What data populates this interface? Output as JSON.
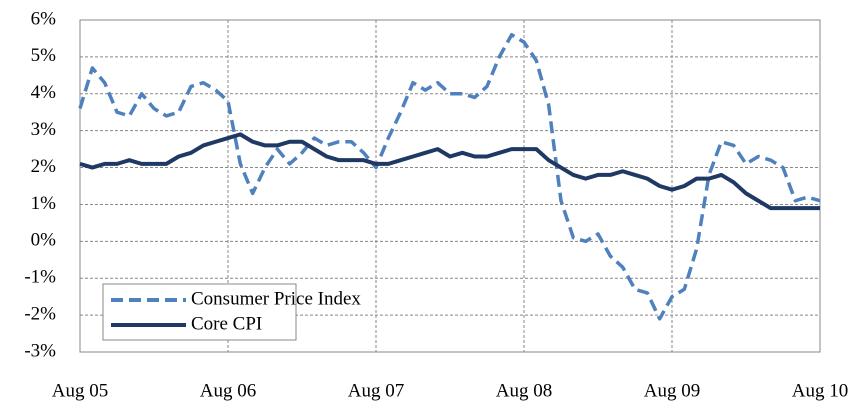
{
  "chart_data": {
    "type": "line",
    "categories": [
      "Aug 05",
      null,
      null,
      null,
      null,
      null,
      null,
      null,
      null,
      null,
      null,
      null,
      "Aug 06",
      null,
      null,
      null,
      null,
      null,
      null,
      null,
      null,
      null,
      null,
      null,
      "Aug 07",
      null,
      null,
      null,
      null,
      null,
      null,
      null,
      null,
      null,
      null,
      null,
      "Aug 08",
      null,
      null,
      null,
      null,
      null,
      null,
      null,
      null,
      null,
      null,
      null,
      "Aug 09",
      null,
      null,
      null,
      null,
      null,
      null,
      null,
      null,
      null,
      null,
      null,
      "Aug 10"
    ],
    "series": [
      {
        "name": "Consumer Price Index",
        "color": "#4f81bd",
        "dashed": true,
        "values": [
          3.6,
          4.7,
          4.3,
          3.5,
          3.4,
          4.0,
          3.6,
          3.4,
          3.5,
          4.2,
          4.3,
          4.1,
          3.8,
          2.1,
          1.3,
          2.0,
          2.5,
          2.1,
          2.4,
          2.8,
          2.6,
          2.7,
          2.7,
          2.4,
          2.0,
          2.8,
          3.5,
          4.3,
          4.1,
          4.3,
          4.0,
          4.0,
          3.9,
          4.2,
          5.0,
          5.6,
          5.4,
          4.9,
          3.7,
          1.1,
          0.1,
          0.0,
          0.2,
          -0.4,
          -0.7,
          -1.3,
          -1.4,
          -2.1,
          -1.5,
          -1.3,
          -0.2,
          1.8,
          2.7,
          2.6,
          2.1,
          2.3,
          2.2,
          2.0,
          1.1,
          1.2,
          1.1
        ]
      },
      {
        "name": "Core CPI",
        "color": "#1f3864",
        "dashed": false,
        "values": [
          2.1,
          2.0,
          2.1,
          2.1,
          2.2,
          2.1,
          2.1,
          2.1,
          2.3,
          2.4,
          2.6,
          2.7,
          2.8,
          2.9,
          2.7,
          2.6,
          2.6,
          2.7,
          2.7,
          2.5,
          2.3,
          2.2,
          2.2,
          2.2,
          2.1,
          2.1,
          2.2,
          2.3,
          2.4,
          2.5,
          2.3,
          2.4,
          2.3,
          2.3,
          2.4,
          2.5,
          2.5,
          2.5,
          2.2,
          2.0,
          1.8,
          1.7,
          1.8,
          1.8,
          1.9,
          1.8,
          1.7,
          1.5,
          1.4,
          1.5,
          1.7,
          1.7,
          1.8,
          1.6,
          1.3,
          1.1,
          0.9,
          0.9,
          0.9,
          0.9,
          0.9
        ]
      }
    ],
    "ylim": [
      -3,
      6
    ],
    "yticks": [
      {
        "value": -3,
        "label": "-3%"
      },
      {
        "value": -2,
        "label": "-2%"
      },
      {
        "value": -1,
        "label": "-1%"
      },
      {
        "value": 0,
        "label": "0%"
      },
      {
        "value": 1,
        "label": "1%"
      },
      {
        "value": 2,
        "label": "2%"
      },
      {
        "value": 3,
        "label": "3%"
      },
      {
        "value": 4,
        "label": "4%"
      },
      {
        "value": 5,
        "label": "5%"
      },
      {
        "value": 6,
        "label": "6%"
      }
    ],
    "grid": true,
    "legend": "lower-left"
  }
}
